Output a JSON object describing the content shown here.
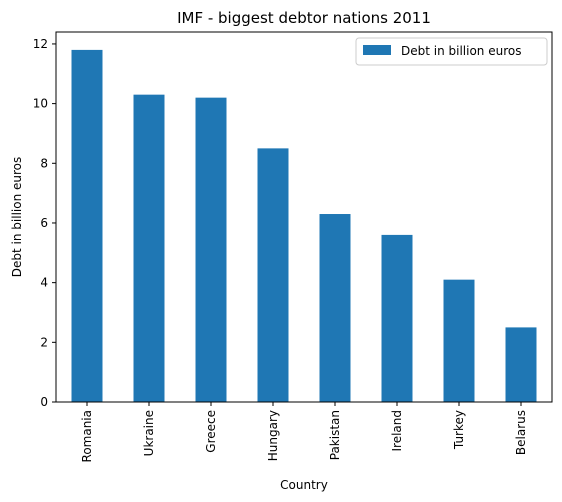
{
  "chart_data": {
    "type": "bar",
    "title": "IMF - biggest debtor nations 2011",
    "xlabel": "Country",
    "ylabel": "Debt in billion euros",
    "categories": [
      "Romania",
      "Ukraine",
      "Greece",
      "Hungary",
      "Pakistan",
      "Ireland",
      "Turkey",
      "Belarus"
    ],
    "series": [
      {
        "name": "Debt in billion euros",
        "values": [
          11.8,
          10.3,
          10.2,
          8.5,
          6.3,
          5.6,
          4.1,
          2.5
        ],
        "color": "#1f77b4"
      }
    ],
    "ylim": [
      0,
      12.4
    ],
    "yticks": [
      0,
      2,
      4,
      6,
      8,
      10,
      12
    ],
    "legend": "top-right",
    "grid": false
  }
}
